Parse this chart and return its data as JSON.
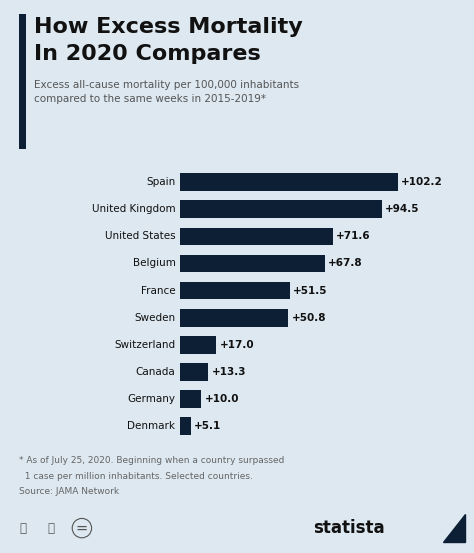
{
  "title_line1": "How Excess Mortality",
  "title_line2": "In 2020 Compares",
  "subtitle": "Excess all-cause mortality per 100,000 inhabitants\ncompared to the same weeks in 2015-2019*",
  "footnote_line1": "* As of July 25, 2020. Beginning when a country surpassed",
  "footnote_line2": "  1 case per million inhabitants. Selected countries.",
  "footnote_line3": "Source: JAMA Network",
  "countries": [
    "Spain",
    "United Kingdom",
    "United States",
    "Belgium",
    "France",
    "Sweden",
    "Switzerland",
    "Canada",
    "Germany",
    "Denmark"
  ],
  "values": [
    102.2,
    94.5,
    71.6,
    67.8,
    51.5,
    50.8,
    17.0,
    13.3,
    10.0,
    5.1
  ],
  "bar_color": "#0d1f35",
  "bg_color": "#dde8f0",
  "title_color": "#111111",
  "subtitle_color": "#555555",
  "value_color": "#111111",
  "accent_bar_color": "#0d1f35",
  "footnote_color": "#666666",
  "statista_color": "#111111"
}
